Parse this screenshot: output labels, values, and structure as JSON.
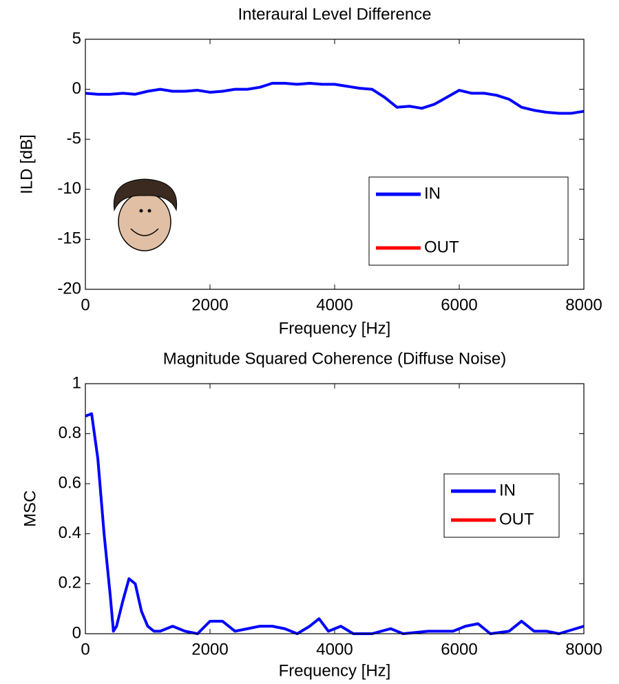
{
  "chart_data": [
    {
      "type": "line",
      "title": "Interaural Level Difference",
      "xlabel": "Frequency [Hz]",
      "ylabel": "ILD [dB]",
      "x": [
        0,
        200,
        400,
        600,
        800,
        1000,
        1200,
        1400,
        1600,
        1800,
        2000,
        2200,
        2400,
        2600,
        2800,
        3000,
        3200,
        3400,
        3600,
        3800,
        4000,
        4200,
        4400,
        4600,
        4800,
        5000,
        5200,
        5400,
        5600,
        5800,
        6000,
        6200,
        6400,
        6600,
        6800,
        7000,
        7200,
        7400,
        7600,
        7800,
        8000
      ],
      "series": [
        {
          "name": "IN",
          "color": "#0000ff",
          "values": [
            -0.4,
            -0.5,
            -0.5,
            -0.4,
            -0.5,
            -0.2,
            0,
            -0.2,
            -0.2,
            -0.1,
            -0.3,
            -0.2,
            0,
            0,
            0.2,
            0.6,
            0.6,
            0.5,
            0.6,
            0.5,
            0.5,
            0.3,
            0.1,
            0,
            -0.8,
            -1.8,
            -1.7,
            -1.9,
            -1.5,
            -0.8,
            -0.1,
            -0.4,
            -0.4,
            -0.6,
            -1.0,
            -1.8,
            -2.1,
            -2.3,
            -2.4,
            -2.4,
            -2.2
          ]
        },
        {
          "name": "OUT",
          "color": "#ff0000"
        }
      ],
      "xlim": [
        0,
        8000
      ],
      "xticks": [
        0,
        2000,
        4000,
        6000,
        8000
      ],
      "ylim": [
        -20,
        5
      ],
      "yticks": [
        -20,
        -15,
        -10,
        -5,
        0,
        5
      ],
      "legend": "right"
    },
    {
      "type": "line",
      "title": "Magnitude Squared Coherence (Diffuse Noise)",
      "xlabel": "Frequency [Hz]",
      "ylabel": "MSC",
      "x": [
        0,
        100,
        200,
        300,
        400,
        450,
        500,
        600,
        700,
        800,
        900,
        1000,
        1100,
        1200,
        1400,
        1600,
        1800,
        2000,
        2200,
        2400,
        2600,
        2800,
        3000,
        3200,
        3400,
        3600,
        3750,
        3900,
        4100,
        4300,
        4600,
        4900,
        5100,
        5500,
        5900,
        6100,
        6300,
        6500,
        6800,
        7000,
        7200,
        7400,
        7600,
        8000
      ],
      "series": [
        {
          "name": "IN",
          "color": "#0000ff",
          "values": [
            0.87,
            0.88,
            0.7,
            0.4,
            0.15,
            0.01,
            0.03,
            0.13,
            0.22,
            0.2,
            0.09,
            0.03,
            0.01,
            0.01,
            0.03,
            0.01,
            0,
            0.05,
            0.05,
            0.01,
            0.02,
            0.03,
            0.03,
            0.02,
            0,
            0.03,
            0.06,
            0.01,
            0.03,
            0,
            0,
            0.02,
            0,
            0.01,
            0.01,
            0.03,
            0.04,
            0,
            0.01,
            0.05,
            0.01,
            0.01,
            0,
            0.03
          ]
        },
        {
          "name": "OUT",
          "color": "#ff0000"
        }
      ],
      "xlim": [
        0,
        8000
      ],
      "xticks": [
        0,
        2000,
        4000,
        6000,
        8000
      ],
      "ylim": [
        0,
        1
      ],
      "yticks": [
        0,
        0.2,
        0.4,
        0.6,
        0.8,
        1
      ],
      "legend": "right"
    }
  ]
}
